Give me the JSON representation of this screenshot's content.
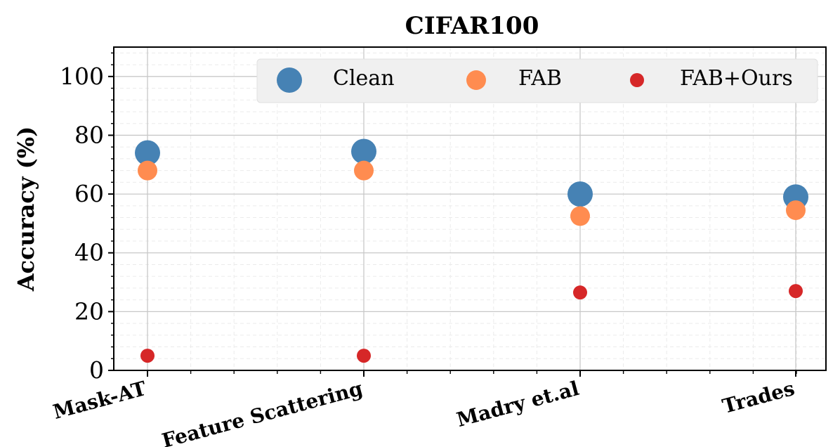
{
  "chart_data": {
    "type": "scatter",
    "title": "CIFAR100",
    "xlabel": "",
    "ylabel": "Accuracy (%)",
    "categories": [
      "Mask-AT",
      "Feature Scattering",
      "Madry et.al",
      "Trades"
    ],
    "ylim": [
      0,
      110
    ],
    "yticks": [
      "0",
      "20",
      "40",
      "60",
      "80",
      "100"
    ],
    "grid": true,
    "legend_position": "top-right",
    "series": [
      {
        "name": "Clean",
        "color": "#4682b4",
        "marker_size": "large",
        "values": [
          74,
          74.5,
          60,
          59
        ]
      },
      {
        "name": "FAB",
        "color": "#ff8c50",
        "marker_size": "medium",
        "values": [
          68,
          68,
          52.5,
          54.5
        ]
      },
      {
        "name": "FAB+Ours",
        "color": "#d62728",
        "marker_size": "small",
        "values": [
          5,
          5,
          26.5,
          27
        ]
      }
    ]
  }
}
